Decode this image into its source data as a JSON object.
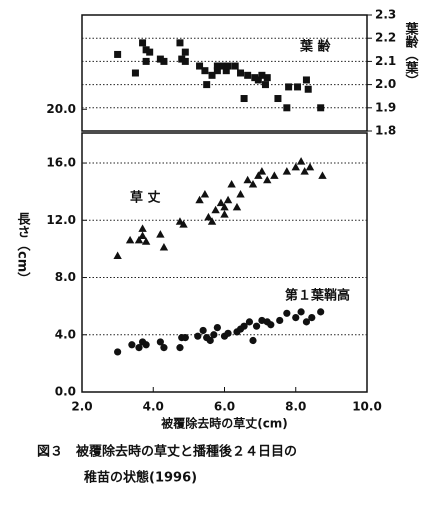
{
  "chart_data": [
    {
      "type": "scatter",
      "xlim": [
        2.0,
        10.0
      ],
      "ylim": [
        18.5,
        26.5
      ],
      "yticks": [
        {
          "value": 20,
          "label": "20.0"
        }
      ],
      "y2lim": [
        1.8,
        2.3
      ],
      "y2ticks": [
        {
          "value": 1.8,
          "label": "1.8"
        },
        {
          "value": 1.9,
          "label": "1.9"
        },
        {
          "value": 2.0,
          "label": "2.0"
        },
        {
          "value": 2.1,
          "label": "2.1"
        },
        {
          "value": 2.2,
          "label": "2.2"
        },
        {
          "value": 2.3,
          "label": "2.3"
        }
      ],
      "y2label": "葉齢（葉）",
      "grid": true,
      "series": [
        {
          "name": "葉 齢",
          "marker": "square",
          "color": "#111111",
          "axis": "y2",
          "x": [
            3.0,
            3.5,
            3.7,
            3.8,
            3.8,
            3.9,
            4.2,
            4.3,
            4.75,
            4.8,
            4.9,
            4.9,
            5.3,
            5.45,
            5.5,
            5.65,
            5.8,
            5.8,
            5.95,
            6.05,
            6.1,
            6.3,
            6.45,
            6.55,
            6.65,
            6.85,
            6.95,
            7.05,
            7.15,
            7.2,
            7.5,
            7.8,
            7.75,
            8.05,
            8.3,
            8.35,
            8.7
          ],
          "values": [
            2.13,
            2.05,
            2.18,
            2.15,
            2.1,
            2.14,
            2.11,
            2.1,
            2.18,
            2.11,
            2.14,
            2.1,
            2.08,
            2.06,
            2.0,
            2.04,
            2.06,
            2.08,
            2.08,
            2.06,
            2.08,
            2.08,
            2.05,
            1.94,
            2.04,
            2.03,
            2.02,
            2.04,
            2.0,
            2.03,
            1.94,
            1.99,
            1.9,
            1.99,
            2.02,
            1.98,
            1.9
          ]
        }
      ]
    },
    {
      "type": "scatter",
      "xlim": [
        2.0,
        10.0
      ],
      "xticks": [
        {
          "value": 2,
          "label": "2.0"
        },
        {
          "value": 4,
          "label": "4.0"
        },
        {
          "value": 6,
          "label": "6.0"
        },
        {
          "value": 8,
          "label": "8.0"
        },
        {
          "value": 10,
          "label": "10.0"
        }
      ],
      "ylim": [
        0,
        18.1
      ],
      "yticks": [
        {
          "value": 0,
          "label": "0.0"
        },
        {
          "value": 4,
          "label": "4.0"
        },
        {
          "value": 8,
          "label": "8.0"
        },
        {
          "value": 12,
          "label": "12.0"
        },
        {
          "value": 16,
          "label": "16.0"
        }
      ],
      "xlabel": "被覆除去時の草丈(cm)",
      "ylabel": "長さ（cm）",
      "grid": true,
      "series": [
        {
          "name": "草 丈",
          "marker": "triangle",
          "color": "#111111",
          "x": [
            3.0,
            3.35,
            3.6,
            3.7,
            3.7,
            3.8,
            4.2,
            4.3,
            4.75,
            4.85,
            5.3,
            5.45,
            5.55,
            5.65,
            5.75,
            5.9,
            6.0,
            6.0,
            6.1,
            6.2,
            6.35,
            6.45,
            6.65,
            6.8,
            6.95,
            7.05,
            7.2,
            7.4,
            7.75,
            8.0,
            8.15,
            8.25,
            8.4,
            8.75
          ],
          "values": [
            9.5,
            10.6,
            10.6,
            10.9,
            11.4,
            10.5,
            11.0,
            10.1,
            11.9,
            11.7,
            13.4,
            13.8,
            12.2,
            11.9,
            12.7,
            13.2,
            12.9,
            12.4,
            13.4,
            14.5,
            12.9,
            13.8,
            14.8,
            14.5,
            15.1,
            15.4,
            14.8,
            15.1,
            15.4,
            15.7,
            16.1,
            15.4,
            15.7,
            15.1
          ]
        },
        {
          "name": "第１葉鞘高",
          "marker": "circle",
          "color": "#111111",
          "x": [
            3.0,
            3.4,
            3.6,
            3.7,
            3.8,
            4.2,
            4.3,
            4.75,
            4.8,
            4.9,
            5.25,
            5.4,
            5.5,
            5.6,
            5.7,
            5.8,
            6.0,
            6.1,
            6.35,
            6.45,
            6.55,
            6.7,
            6.8,
            6.9,
            7.05,
            7.2,
            7.3,
            7.55,
            7.75,
            8.0,
            8.15,
            8.3,
            8.45,
            8.7
          ],
          "values": [
            2.8,
            3.3,
            3.1,
            3.5,
            3.3,
            3.5,
            3.1,
            3.1,
            3.8,
            3.8,
            3.9,
            4.3,
            3.8,
            3.6,
            4.0,
            4.5,
            3.9,
            4.1,
            4.2,
            4.4,
            4.6,
            4.9,
            3.6,
            4.6,
            5.0,
            4.9,
            4.7,
            5.0,
            5.5,
            5.2,
            5.6,
            4.9,
            5.2,
            5.6
          ]
        }
      ]
    }
  ],
  "caption": [
    "図３　被覆除去時の草丈と播種後２４日目の",
    "稚苗の状態(1996)"
  ]
}
